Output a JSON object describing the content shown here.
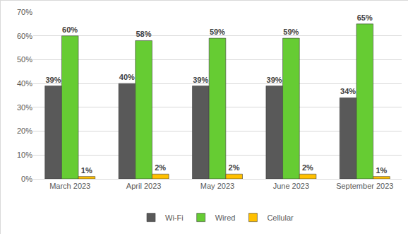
{
  "chart_data": {
    "type": "bar",
    "categories": [
      "March 2023",
      "April 2023",
      "May 2023",
      "June 2023",
      "September 2023"
    ],
    "series": [
      {
        "name": "Wi-Fi",
        "color": "#595959",
        "values": [
          39,
          40,
          39,
          39,
          34
        ],
        "value_labels": [
          "39%",
          "40%",
          "39%",
          "39%",
          "34%"
        ]
      },
      {
        "name": "Wired",
        "color": "#66cc33",
        "values": [
          60,
          58,
          59,
          59,
          65
        ],
        "value_labels": [
          "60%",
          "58%",
          "59%",
          "59%",
          "65%"
        ]
      },
      {
        "name": "Cellular",
        "color": "#ffc000",
        "values": [
          1,
          2,
          2,
          2,
          1
        ],
        "value_labels": [
          "1%",
          "2%",
          "2%",
          "2%",
          "1%"
        ]
      }
    ],
    "ylim": [
      0,
      70
    ],
    "yticks": [
      {
        "value": 0,
        "label": "0%"
      },
      {
        "value": 10,
        "label": "10%"
      },
      {
        "value": 20,
        "label": "20%"
      },
      {
        "value": 30,
        "label": "30%"
      },
      {
        "value": 40,
        "label": "40%"
      },
      {
        "value": 50,
        "label": "50%"
      },
      {
        "value": 60,
        "label": "60%"
      },
      {
        "value": 70,
        "label": "70%"
      }
    ],
    "grid": true,
    "legend": "bottom",
    "data_labels": true
  }
}
